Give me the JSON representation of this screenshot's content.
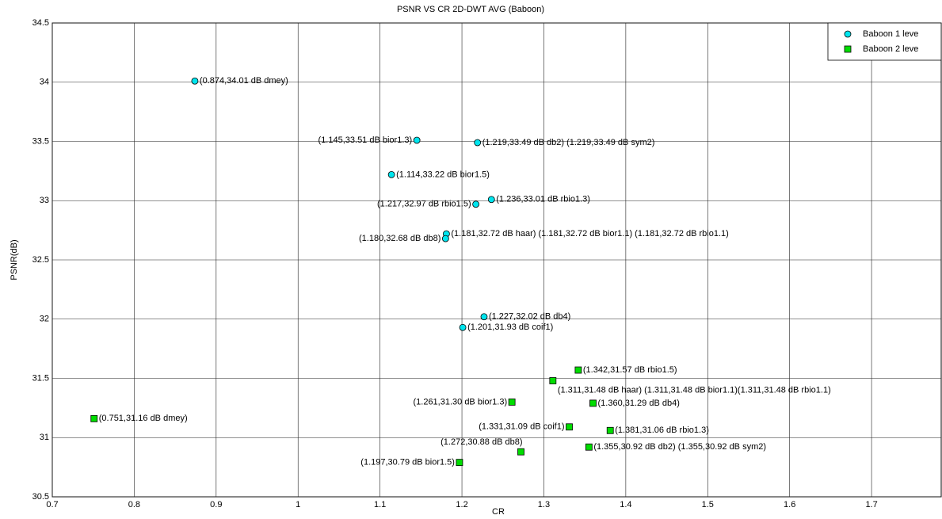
{
  "chart_data": {
    "type": "scatter",
    "title": "PSNR VS CR 2D-DWT AVG (Baboon)",
    "x_label": "CR",
    "y_label": "PSNR(dB)",
    "xlim": [
      0.7,
      1.785
    ],
    "ylim": [
      30.5,
      34.5
    ],
    "xticks": [
      0.7,
      0.8,
      0.9,
      1,
      1.1,
      1.2,
      1.3,
      1.4,
      1.5,
      1.6,
      1.7
    ],
    "yticks": [
      30.5,
      31,
      31.5,
      32,
      32.5,
      33,
      33.5,
      34,
      34.5
    ],
    "grid": true,
    "legend": "upper right",
    "series": [
      {
        "name": "Baboon 1 leve",
        "color": "#00e5ee",
        "marker": "circle",
        "x": [
          0.874,
          1.145,
          1.219,
          1.114,
          1.236,
          1.217,
          1.181,
          1.18,
          1.227,
          1.201
        ],
        "values": [
          34.01,
          33.51,
          33.49,
          33.22,
          33.01,
          32.97,
          32.72,
          32.68,
          32.02,
          31.93
        ],
        "value_labels": [
          "(0.874,34.01 dB dmey)",
          "(1.145,33.51 dB bior1.3)",
          "(1.219,33.49 dB db2)  (1.219,33.49 dB sym2)",
          "(1.114,33.22 dB bior1.5)",
          "(1.236,33.01 dB rbio1.3)",
          "(1.217,32.97 dB rbio1.5)",
          "(1.181,32.72 dB haar)  (1.181,32.72 dB bior1.1)  (1.181,32.72 dB rbio1.1)",
          "(1.180,32.68 dB db8)",
          "(1.227,32.02 dB db4)",
          "(1.201,31.93 dB coif1)"
        ]
      },
      {
        "name": "Baboon 2 leve",
        "color": "#00dd00",
        "marker": "square",
        "x": [
          1.342,
          1.311,
          1.261,
          1.36,
          0.751,
          1.331,
          1.381,
          1.272,
          1.355,
          1.197
        ],
        "values": [
          31.57,
          31.48,
          31.3,
          31.29,
          31.16,
          31.09,
          31.06,
          30.88,
          30.92,
          30.79
        ],
        "value_labels": [
          "(1.342,31.57 dB rbio1.5)",
          "(1.311,31.48 dB haar)  (1.311,31.48 dB bior1.1)(1.311,31.48 dB rbio1.1)",
          "(1.261,31.30 dB bior1.3)",
          "(1.360,31.29 dB db4)",
          "(0.751,31.16 dB dmey)",
          "(1.331,31.09 dB coif1)",
          "(1.381,31.06 dB rbio1.3)",
          "(1.272,30.88 dB db8)",
          "(1.355,30.92 dB db2)  (1.355,30.92 dB sym2)",
          "(1.197,30.79 dB bior1.5)"
        ]
      }
    ]
  }
}
